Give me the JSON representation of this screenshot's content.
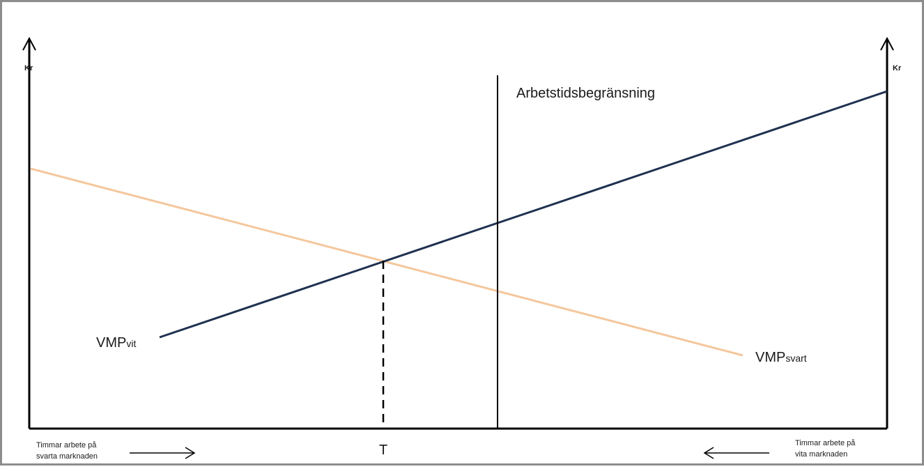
{
  "diagram": {
    "left_axis_label": "Kr",
    "right_axis_label": "Kr",
    "vertical_line_label": "Arbetstidsbegränsning",
    "vmp_vit": {
      "main": "VMP",
      "sub": "vit"
    },
    "vmp_svart": {
      "main": "VMP",
      "sub": "svart"
    },
    "t_label": "T",
    "bottom_left_line1": "Timmar arbete på",
    "bottom_left_line2": "svarta marknaden",
    "bottom_right_line1": "Timmar arbete på",
    "bottom_right_line2": "vita marknaden"
  },
  "colors": {
    "vmp_vit_line": "#1f3150",
    "vmp_svart_line": "#f5c79c",
    "axes": "#000000",
    "frame_border": "#8c8c8c"
  }
}
